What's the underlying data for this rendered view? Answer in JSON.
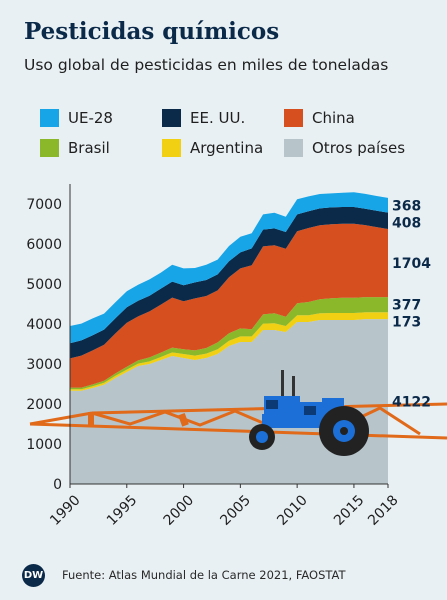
{
  "header": {
    "title": "Pesticidas químicos",
    "subtitle": "Uso global de pesticidas en miles de toneladas"
  },
  "chart_data": {
    "type": "area",
    "stacked": true,
    "title": "Pesticidas químicos",
    "subtitle": "Uso global de pesticidas en miles de toneladas",
    "xlabel": "",
    "ylabel": "",
    "x": [
      1990,
      1991,
      1992,
      1993,
      1994,
      1995,
      1996,
      1997,
      1998,
      1999,
      2000,
      2001,
      2002,
      2003,
      2004,
      2005,
      2006,
      2007,
      2008,
      2009,
      2010,
      2011,
      2012,
      2013,
      2014,
      2015,
      2016,
      2017,
      2018
    ],
    "x_ticks": [
      1990,
      1995,
      2000,
      2005,
      2010,
      2015,
      2018
    ],
    "y_ticks": [
      0,
      1000,
      2000,
      3000,
      4000,
      5000,
      6000,
      7000
    ],
    "ylim": [
      0,
      7500
    ],
    "grid": false,
    "legend_position": "top",
    "series": [
      {
        "name": "Otros países",
        "color": "#b7c4ca",
        "values": [
          2330,
          2330,
          2400,
          2480,
          2650,
          2800,
          2950,
          3000,
          3100,
          3200,
          3150,
          3100,
          3150,
          3250,
          3450,
          3550,
          3550,
          3850,
          3850,
          3800,
          4050,
          4050,
          4100,
          4100,
          4100,
          4100,
          4122,
          4122,
          4122
        ]
      },
      {
        "name": "Argentina",
        "color": "#f1cf13",
        "values": [
          40,
          40,
          45,
          50,
          55,
          60,
          60,
          65,
          75,
          90,
          100,
          110,
          110,
          120,
          130,
          140,
          140,
          160,
          170,
          150,
          170,
          170,
          170,
          175,
          175,
          175,
          173,
          173,
          173
        ]
      },
      {
        "name": "Brasil",
        "color": "#8ab82a",
        "values": [
          40,
          40,
          45,
          50,
          60,
          70,
          80,
          100,
          110,
          120,
          120,
          130,
          140,
          170,
          190,
          200,
          180,
          230,
          250,
          230,
          300,
          330,
          350,
          370,
          380,
          380,
          377,
          377,
          377
        ]
      },
      {
        "name": "China",
        "color": "#d64f1f",
        "values": [
          730,
          800,
          850,
          900,
          1000,
          1100,
          1100,
          1150,
          1200,
          1250,
          1200,
          1300,
          1300,
          1300,
          1400,
          1500,
          1600,
          1700,
          1700,
          1700,
          1800,
          1850,
          1850,
          1850,
          1850,
          1850,
          1800,
          1750,
          1704
        ]
      },
      {
        "name": "EE. UU.",
        "color": "#0b2a4a",
        "values": [
          380,
          380,
          380,
          380,
          380,
          390,
          390,
          390,
          400,
          400,
          400,
          400,
          400,
          400,
          400,
          400,
          420,
          420,
          420,
          420,
          420,
          420,
          420,
          420,
          420,
          420,
          410,
          410,
          408
        ]
      },
      {
        "name": "UE-28",
        "color": "#17a5e8",
        "values": [
          430,
          420,
          420,
          400,
          400,
          400,
          400,
          410,
          400,
          420,
          420,
          360,
          380,
          370,
          380,
          390,
          380,
          380,
          390,
          380,
          380,
          370,
          360,
          350,
          355,
          370,
          370,
          368,
          368
        ]
      }
    ],
    "end_labels": [
      {
        "series": "UE-28",
        "text": "368"
      },
      {
        "series": "EE. UU.",
        "text": "408"
      },
      {
        "series": "China",
        "text": "1704"
      },
      {
        "series": "Brasil",
        "text": "377"
      },
      {
        "series": "Argentina",
        "text": "173"
      },
      {
        "series": "Otros países",
        "text": "4122"
      }
    ]
  },
  "legend": [
    {
      "label": "UE-28",
      "color": "#17a5e8"
    },
    {
      "label": "EE. UU.",
      "color": "#0b2a4a"
    },
    {
      "label": "China",
      "color": "#d64f1f"
    },
    {
      "label": "Brasil",
      "color": "#8ab82a"
    },
    {
      "label": "Argentina",
      "color": "#f1cf13"
    },
    {
      "label": "Otros países",
      "color": "#b7c4ca"
    }
  ],
  "illustration": {
    "tractor_icon": "tractor-icon",
    "tractor_color": "#1b6fd6",
    "boom_color": "#e06a1a"
  },
  "footer": {
    "logo": "DW",
    "source": "Fuente: Atlas Mundial de la Carne 2021, FAOSTAT"
  }
}
